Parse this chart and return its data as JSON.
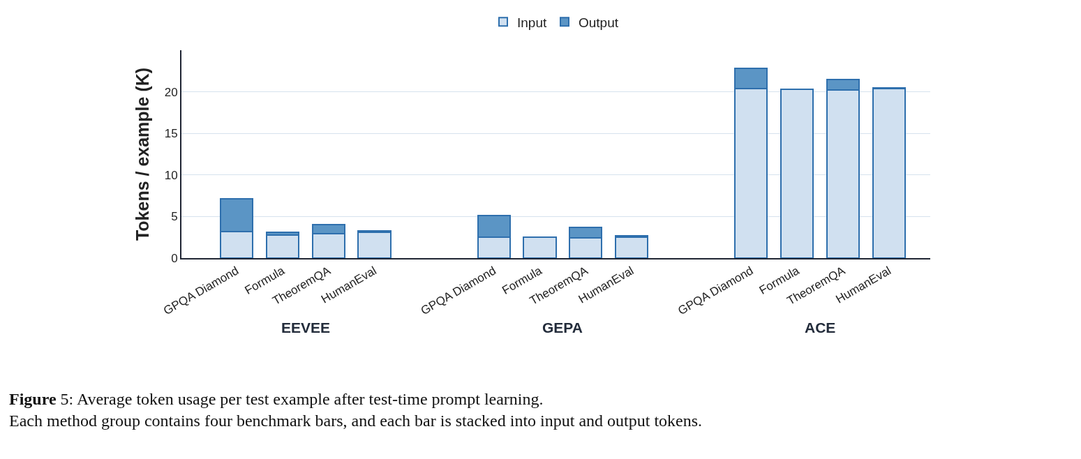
{
  "chart_data": {
    "type": "bar",
    "stacked": true,
    "ylabel": "Tokens / example (K)",
    "categories": [
      "GPQA Diamond",
      "Formula",
      "TheoremQA",
      "HumanEval",
      "GPQA Diamond",
      "Formula",
      "TheoremQA",
      "HumanEval",
      "GPQA Diamond",
      "Formula",
      "TheoremQA",
      "HumanEval"
    ],
    "series": [
      {
        "name": "Input",
        "color": "#d0e0f0",
        "values": [
          3.2,
          2.8,
          2.9,
          3.1,
          2.5,
          2.5,
          2.4,
          2.5,
          20.4,
          20.3,
          20.2,
          20.4
        ]
      },
      {
        "name": "Output",
        "color": "#5b95c5",
        "values": [
          3.9,
          0.3,
          1.1,
          0.2,
          2.6,
          null,
          1.3,
          0.2,
          2.4,
          null,
          1.3,
          0.1
        ]
      }
    ],
    "ylim": [
      0,
      25
    ],
    "yticks": [
      0,
      5,
      10,
      15,
      20
    ],
    "grid": "y",
    "legend": "top",
    "annotations": [
      "EEVEE",
      "GEPA",
      "ACE",
      "Figure 5: Average token usage per test example after test-time prompt learning.\nEach method group contains four benchmark bars, and each bar is stacked into input and output tokens."
    ]
  }
}
